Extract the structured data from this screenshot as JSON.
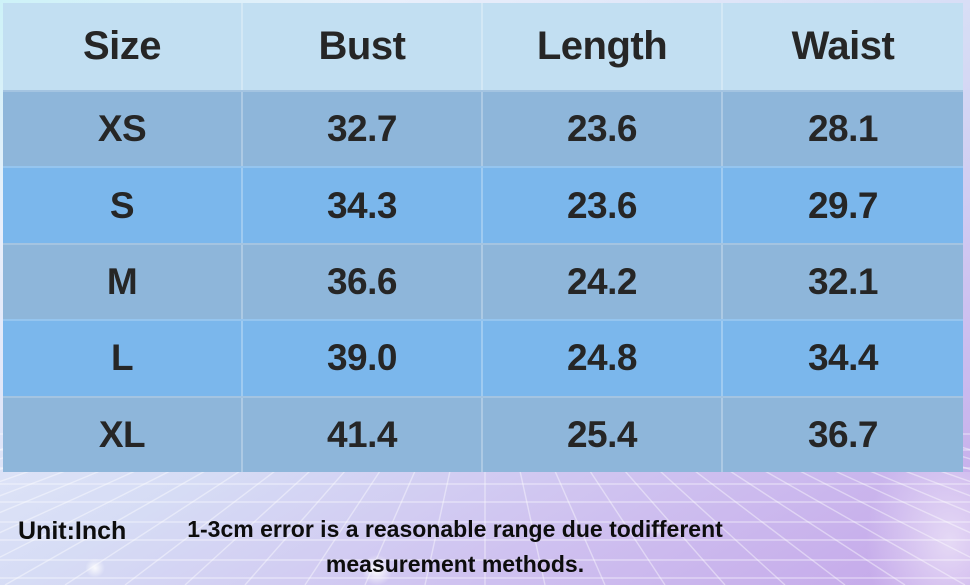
{
  "chart_data": {
    "type": "table",
    "columns": [
      "Size",
      "Bust",
      "Length",
      "Waist"
    ],
    "rows": [
      [
        "XS",
        "32.7",
        "23.6",
        "28.1"
      ],
      [
        "S",
        "34.3",
        "23.6",
        "29.7"
      ],
      [
        "M",
        "36.6",
        "24.2",
        "32.1"
      ],
      [
        "L",
        "39.0",
        "24.8",
        "34.4"
      ],
      [
        "XL",
        "41.4",
        "25.4",
        "36.7"
      ]
    ]
  },
  "footer": {
    "unit_label": "Unit:Inch",
    "note_line1": "1-3cm error is a reasonable range due todifferent",
    "note_line2": "measurement methods."
  },
  "colors": {
    "header-bg": "#c2dff2",
    "row-odd": "#8eb6da",
    "row-even": "#7bb7ec",
    "cell-text": "#262626",
    "footer-text": "#0d0d0d"
  }
}
